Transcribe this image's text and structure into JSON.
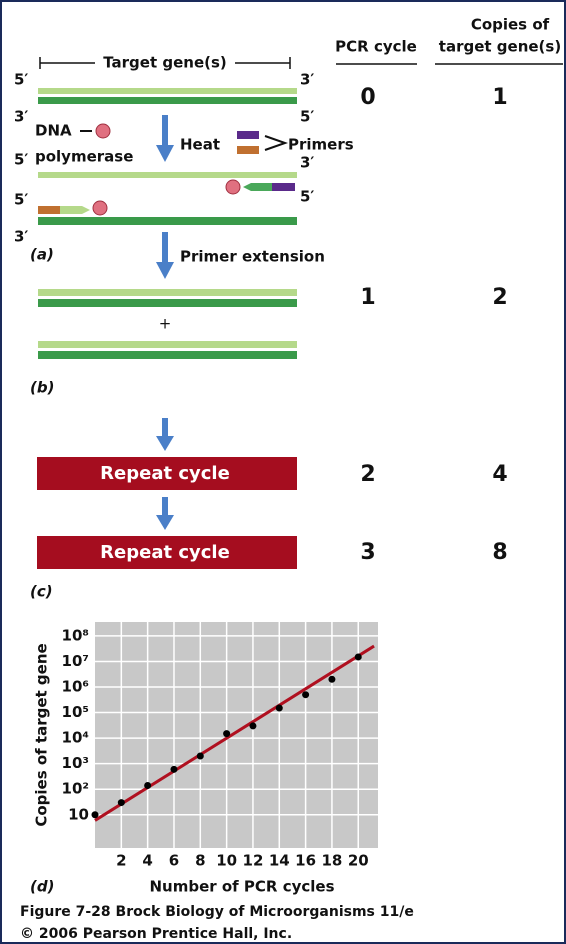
{
  "header": {
    "pcr_cycle": "PCR cycle",
    "copies": [
      "Copies of",
      "target gene(s)"
    ]
  },
  "panel_a": {
    "target": "Target gene(s)",
    "ends": [
      "5′",
      "3′",
      "3′",
      "5′",
      "5′",
      "3′",
      "5′",
      "5′",
      "3′"
    ],
    "polymerase": [
      "DNA",
      "polymerase"
    ],
    "heat": "Heat",
    "primers": "Primers",
    "extension": "Primer extension",
    "label": "(a)"
  },
  "panel_b": {
    "plus": "+",
    "label": "(b)"
  },
  "panel_c": {
    "repeat": [
      "Repeat cycle",
      "Repeat cycle"
    ],
    "label": "(c)"
  },
  "cycles": {
    "pcr": [
      0,
      1,
      2,
      3
    ],
    "copies": [
      1,
      2,
      4,
      8
    ]
  },
  "panel_d": {
    "label": "(d)"
  },
  "chart_data": {
    "type": "scatter",
    "x_label": "Number of PCR cycles",
    "y_label": "Copies of target gene",
    "x": [
      0,
      2,
      4,
      6,
      8,
      10,
      12,
      14,
      16,
      18,
      20
    ],
    "values": [
      10,
      30,
      140,
      600,
      2000,
      15000,
      30000,
      150000,
      500000,
      2000000,
      15000000
    ],
    "color": "#000000",
    "trend": {
      "x": [
        0,
        21.2
      ],
      "values": [
        6,
        40000000
      ],
      "color": "#b01020"
    },
    "log_y": true,
    "grid": true,
    "background": "#c8c8c8",
    "xlim": [
      0,
      21.5
    ],
    "ylim": [
      0.5,
      350000000
    ],
    "xticks": [
      2,
      4,
      6,
      8,
      10,
      12,
      14,
      16,
      18,
      20
    ],
    "yticks": [
      10,
      {
        "value": 100,
        "label": "10²"
      },
      {
        "value": 1000,
        "label": "10³"
      },
      {
        "value": 10000,
        "label": "10⁴"
      },
      {
        "value": 100000,
        "label": "10⁵"
      },
      {
        "value": 1000000,
        "label": "10⁶"
      },
      {
        "value": 10000000,
        "label": "10⁷"
      },
      {
        "value": 100000000,
        "label": "10⁸"
      }
    ]
  },
  "caption": [
    "Figure 7-28  Brock Biology of Microorganisms 11/e",
    "© 2006 Pearson Prentice Hall, Inc."
  ]
}
